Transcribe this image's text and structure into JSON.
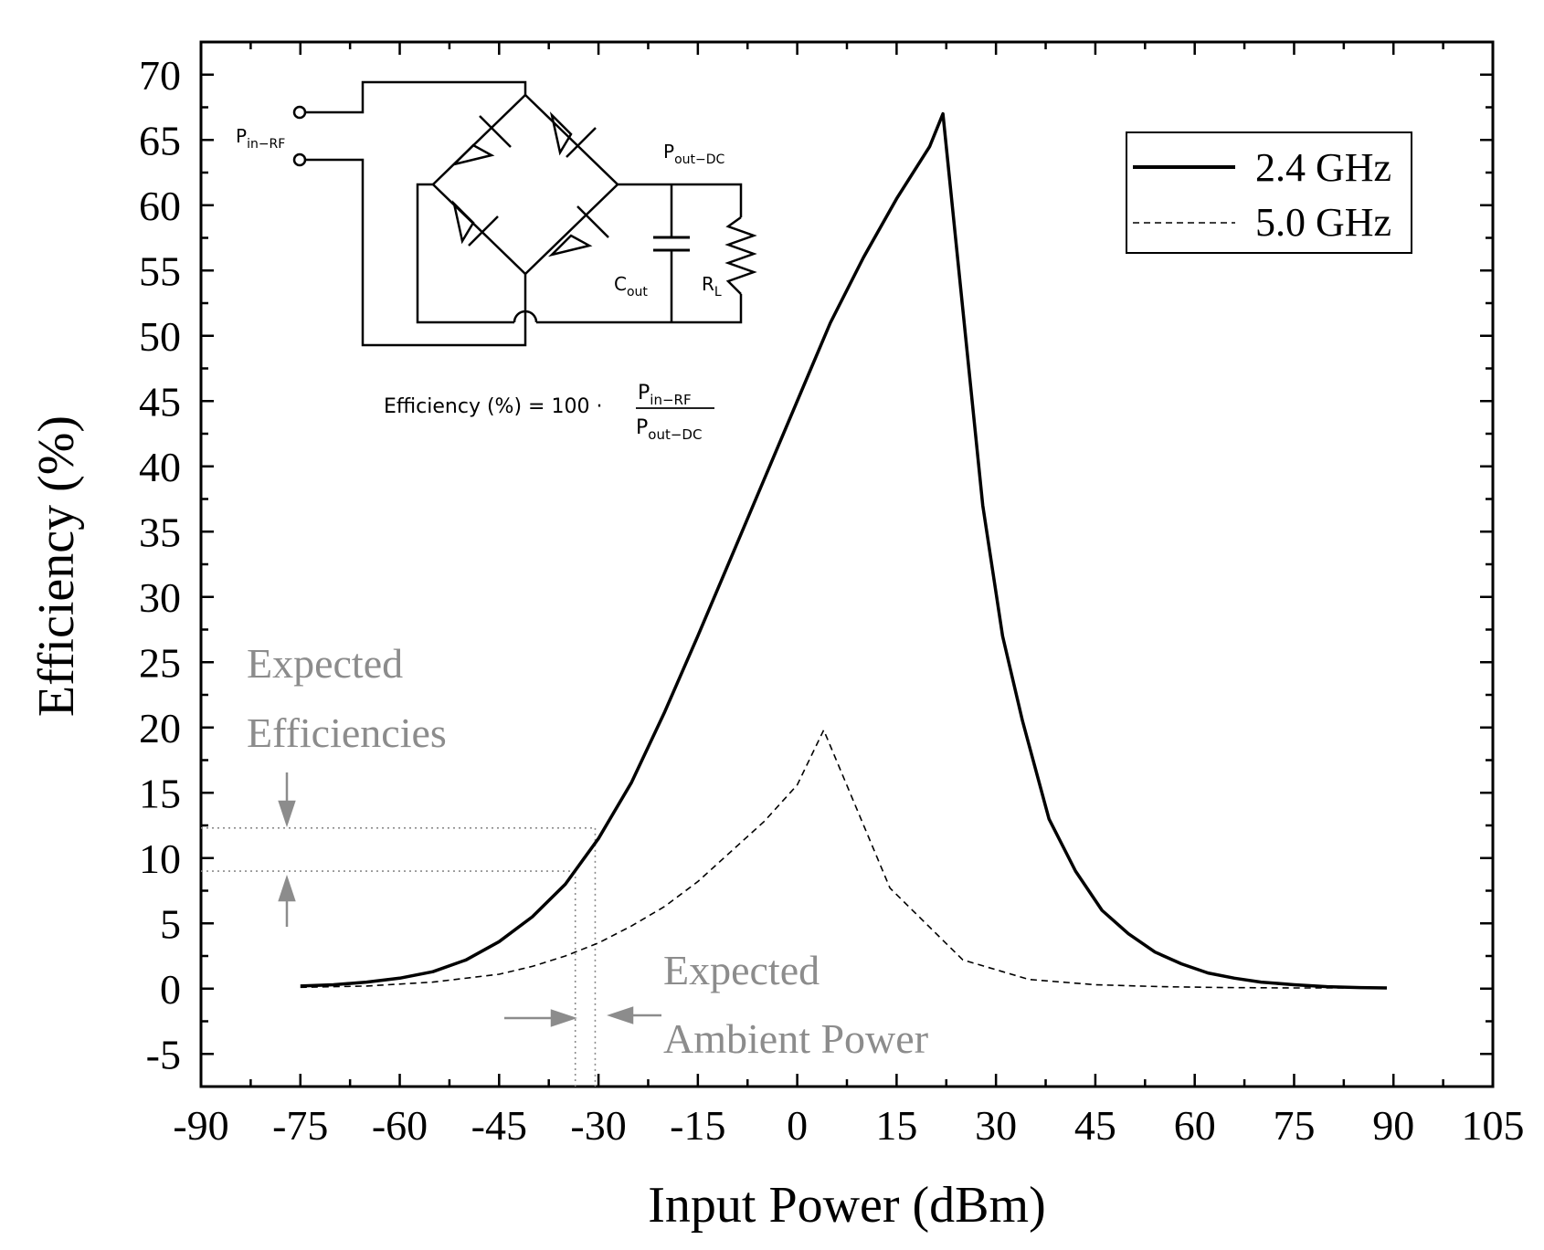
{
  "chart_data": {
    "type": "line",
    "title": "",
    "xlabel": "Input Power (dBm)",
    "ylabel": "Efficiency (%)",
    "xlim": [
      -90,
      105
    ],
    "ylim": [
      -7.5,
      72.5
    ],
    "xticks": [
      -90,
      -75,
      -60,
      -45,
      -30,
      -15,
      0,
      15,
      30,
      45,
      60,
      75,
      90,
      105
    ],
    "yticks": [
      -5,
      0,
      5,
      10,
      15,
      20,
      25,
      30,
      35,
      40,
      45,
      50,
      55,
      60,
      65,
      70
    ],
    "legend": "top-right",
    "series": [
      {
        "name": "2.4 GHz",
        "style": "solid",
        "x": [
          -75,
          -70,
          -65,
          -60,
          -55,
          -50,
          -45,
          -40,
          -35,
          -30,
          -25,
          -20,
          -15,
          -10,
          -5,
          0,
          5,
          10,
          15,
          20,
          22,
          25,
          28,
          31,
          34,
          38,
          42,
          46,
          50,
          54,
          58,
          62,
          66,
          70,
          75,
          80,
          85,
          89
        ],
        "y": [
          0.2,
          0.3,
          0.5,
          0.8,
          1.3,
          2.2,
          3.6,
          5.5,
          8.0,
          11.5,
          15.8,
          21.2,
          27.0,
          33.0,
          39.0,
          45.0,
          51.0,
          56.0,
          60.5,
          64.5,
          67.0,
          52.0,
          37.0,
          27.0,
          20.5,
          13.0,
          9.0,
          6.0,
          4.2,
          2.8,
          1.9,
          1.2,
          0.8,
          0.5,
          0.3,
          0.15,
          0.08,
          0.05
        ]
      },
      {
        "name": "5.0 GHz",
        "style": "dashed",
        "x": [
          -75,
          -65,
          -55,
          -45,
          -40,
          -35,
          -30,
          -25,
          -20,
          -15,
          -10,
          -5,
          0,
          4,
          14,
          25,
          35,
          45,
          55,
          65,
          75,
          89
        ],
        "y": [
          0.1,
          0.2,
          0.5,
          1.1,
          1.7,
          2.5,
          3.5,
          4.8,
          6.3,
          8.2,
          10.5,
          12.8,
          15.6,
          19.8,
          7.7,
          2.2,
          0.7,
          0.3,
          0.15,
          0.08,
          0.05,
          0.05
        ]
      }
    ],
    "annotations": {
      "efficiency_label": [
        "Expected",
        "Efficiencies"
      ],
      "power_label": [
        "Expected",
        "Ambient Power"
      ],
      "efficiency_range": [
        9.0,
        12.3
      ],
      "power_range": [
        -33.5,
        -30.5
      ]
    }
  },
  "circuit": {
    "pin_label": "P",
    "pin_sub": "in−RF",
    "pout_label": "P",
    "pout_sub": "out−DC",
    "cout_label": "C",
    "cout_sub": "out",
    "rl_label": "R",
    "rl_sub": "L",
    "equation_lhs": "Efficiency (%) = 100 ·",
    "eq_num": "P",
    "eq_num_sub": "in−RF",
    "eq_den": "P",
    "eq_den_sub": "out−DC"
  }
}
